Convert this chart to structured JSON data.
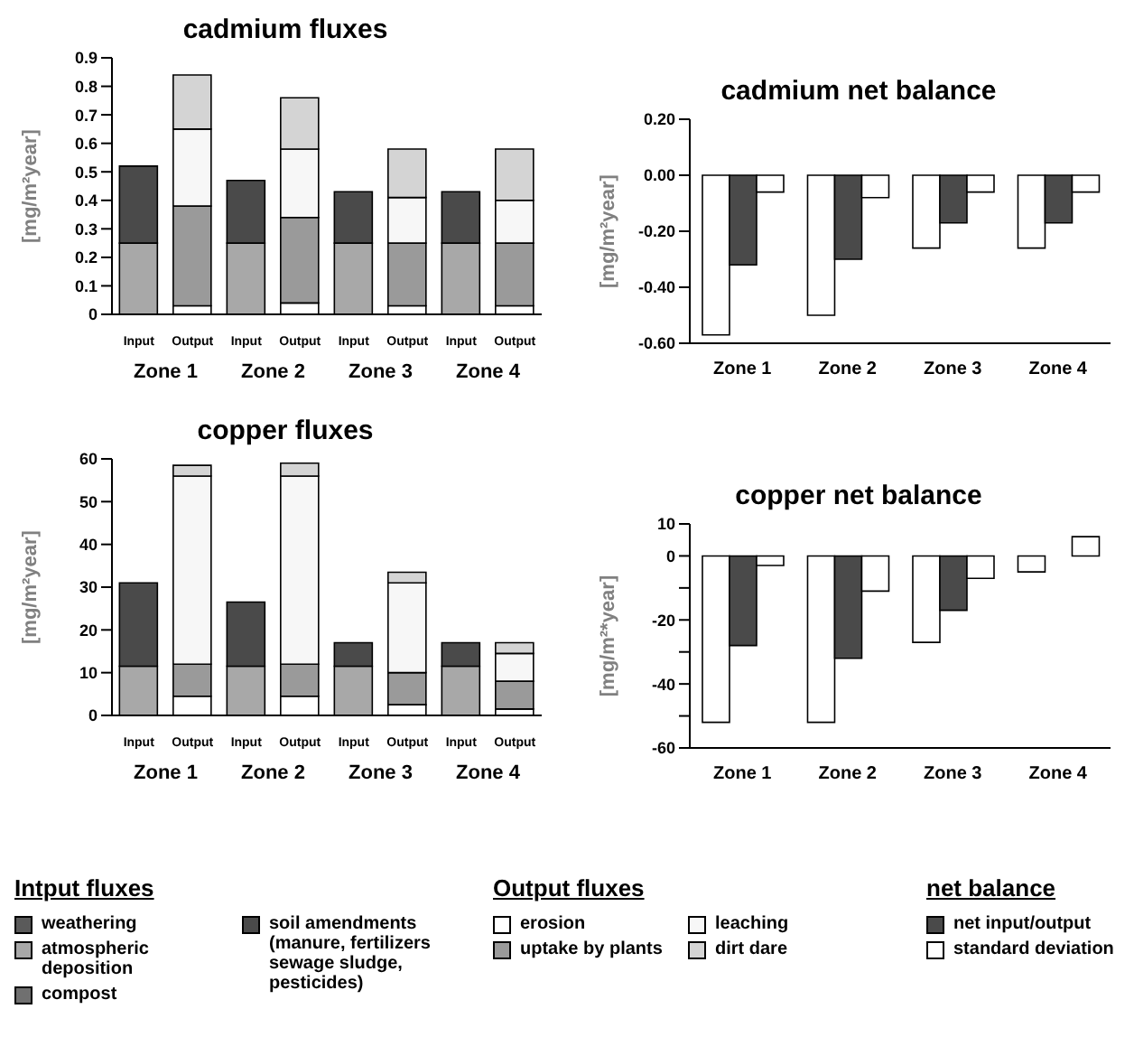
{
  "chart_data": [
    {
      "type": "bar",
      "title": "cadmium fluxes",
      "ylabel": "[mg/m²year]",
      "stacked": true,
      "legend": "bottom",
      "categories": [
        "Input",
        "Output",
        "Input",
        "Output",
        "Input",
        "Output",
        "Input",
        "Output"
      ],
      "annotations": [
        "Zone 1",
        "Zone 2",
        "Zone 3",
        "Zone 4"
      ],
      "ylim": [
        0,
        0.9
      ],
      "yticks": [
        0,
        0.1,
        0.2,
        0.3,
        0.4,
        0.5,
        0.6,
        0.7,
        0.8,
        0.9
      ],
      "series": [
        {
          "name": "weathering",
          "color": "#5a5a5a",
          "values": [
            null,
            null,
            null,
            null,
            null,
            null,
            null,
            null
          ]
        },
        {
          "name": "atmospheric deposition",
          "color": "#a8a8a8",
          "values": [
            0.25,
            null,
            0.25,
            null,
            0.25,
            null,
            0.25,
            null
          ]
        },
        {
          "name": "compost",
          "color": "#707070",
          "values": [
            null,
            null,
            null,
            null,
            null,
            null,
            null,
            null
          ]
        },
        {
          "name": "soil amendments (manure, fertilizers sewage sludge, pesticides)",
          "color": "#4a4a4a",
          "values": [
            0.27,
            null,
            0.22,
            null,
            0.18,
            null,
            0.18,
            null
          ]
        },
        {
          "name": "erosion",
          "color": "#ffffff",
          "values": [
            null,
            0.03,
            null,
            0.04,
            null,
            0.03,
            null,
            0.03
          ]
        },
        {
          "name": "uptake by plants",
          "color": "#9a9a9a",
          "values": [
            null,
            0.35,
            null,
            0.3,
            null,
            0.22,
            null,
            0.22
          ]
        },
        {
          "name": "leaching",
          "color": "#f7f7f7",
          "values": [
            null,
            0.27,
            null,
            0.24,
            null,
            0.16,
            null,
            0.15
          ]
        },
        {
          "name": "dirt dare",
          "color": "#d4d4d4",
          "values": [
            null,
            0.19,
            null,
            0.18,
            null,
            0.17,
            null,
            0.18
          ]
        }
      ]
    },
    {
      "type": "bar",
      "title": "cadmium net balance",
      "ylabel": "[mg/m²year]",
      "legend": "bottom",
      "categories": [
        "Zone 1",
        "Zone 2",
        "Zone 3",
        "Zone 4"
      ],
      "ylim": [
        -0.6,
        0.2
      ],
      "yticks": [
        {
          "value": -0.6,
          "label": "-0.60"
        },
        {
          "value": -0.4,
          "label": "-0.40"
        },
        {
          "value": -0.2,
          "label": "-0.20"
        },
        {
          "value": 0,
          "label": "0.00"
        },
        {
          "value": 0.2,
          "label": "0.20"
        }
      ],
      "series": [
        {
          "color": "#ffffff",
          "values": [
            -0.57,
            -0.5,
            -0.26,
            -0.26
          ]
        },
        {
          "name": "net input/output",
          "color": "#4a4a4a",
          "values": [
            -0.32,
            -0.3,
            -0.17,
            -0.17
          ]
        },
        {
          "name": "standard deviation",
          "color": "#ffffff",
          "values": [
            -0.06,
            -0.08,
            -0.06,
            -0.06
          ]
        }
      ]
    },
    {
      "type": "bar",
      "title": "copper fluxes",
      "ylabel": "[mg/m²year]",
      "stacked": true,
      "categories": [
        "Input",
        "Output",
        "Input",
        "Output",
        "Input",
        "Output",
        "Input",
        "Output"
      ],
      "annotations": [
        "Zone 1",
        "Zone 2",
        "Zone 3",
        "Zone 4"
      ],
      "ylim": [
        0,
        60
      ],
      "yticks": [
        0,
        10,
        20,
        30,
        40,
        50,
        60
      ],
      "series": [
        {
          "color": "#a8a8a8",
          "values": [
            11.5,
            null,
            11.5,
            null,
            11.5,
            null,
            11.5,
            null
          ]
        },
        {
          "color": "#4a4a4a",
          "values": [
            19.5,
            null,
            15,
            null,
            5.5,
            null,
            5.5,
            null
          ]
        },
        {
          "color": "#ffffff",
          "values": [
            null,
            4.5,
            null,
            4.5,
            null,
            2.5,
            null,
            1.5
          ]
        },
        {
          "color": "#9a9a9a",
          "values": [
            null,
            7.5,
            null,
            7.5,
            null,
            7.5,
            null,
            6.5
          ]
        },
        {
          "color": "#f7f7f7",
          "values": [
            null,
            44,
            null,
            44,
            null,
            21,
            null,
            6.5
          ]
        },
        {
          "color": "#d4d4d4",
          "values": [
            null,
            2.5,
            null,
            3,
            null,
            2.5,
            null,
            2.5
          ]
        }
      ]
    },
    {
      "type": "bar",
      "title": "copper net balance",
      "ylabel": "[mg/m²*year]",
      "categories": [
        "Zone 1",
        "Zone 2",
        "Zone 3",
        "Zone 4"
      ],
      "ylim": [
        -60,
        10
      ],
      "yticks": [
        -60,
        {
          "value": -50,
          "label": null
        },
        -40,
        {
          "value": -30,
          "label": null
        },
        -20,
        {
          "value": -10,
          "label": null
        },
        0,
        10
      ],
      "series": [
        {
          "color": "#ffffff",
          "values": [
            -52,
            -52,
            -27,
            -5
          ]
        },
        {
          "color": "#4a4a4a",
          "values": [
            -28,
            -32,
            -17,
            null
          ]
        },
        {
          "color": "#ffffff",
          "values": [
            -3,
            -11,
            -7,
            6
          ]
        }
      ]
    },
    {
      "type": "other",
      "annotations": [
        "Intput fluxes",
        "Output fluxes",
        "net balance"
      ]
    }
  ]
}
